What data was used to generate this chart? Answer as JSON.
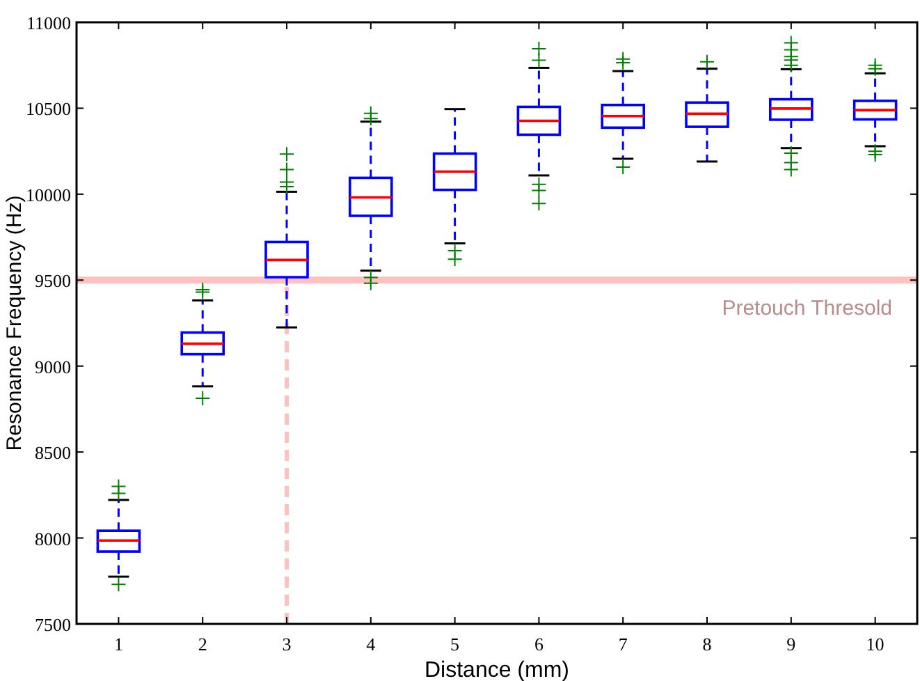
{
  "chart_data": {
    "type": "box",
    "xlabel": "Distance (mm)",
    "ylabel": "Resonance Frequency (Hz)",
    "categories": [
      "1",
      "2",
      "3",
      "4",
      "5",
      "6",
      "7",
      "8",
      "9",
      "10"
    ],
    "ylim": [
      7500,
      11000
    ],
    "yticks": [
      7500,
      8000,
      8500,
      9000,
      9500,
      10000,
      10500,
      11000
    ],
    "grid": false,
    "series": [
      {
        "color": "#0000ff",
        "boxes": [
          {
            "low": 7775,
            "q1": 7921,
            "median": 7985,
            "q3": 8042,
            "high": 8221,
            "outliers": [
              8260,
              8300,
              7730
            ]
          },
          {
            "low": 8882,
            "q1": 9069,
            "median": 9130,
            "q3": 9195,
            "high": 9382,
            "outliers": [
              9430,
              9444,
              8812
            ]
          },
          {
            "low": 9225,
            "q1": 9517,
            "median": 9617,
            "q3": 9722,
            "high": 10014,
            "outliers": [
              10044,
              10070,
              10143,
              10233
            ]
          },
          {
            "low": 9555,
            "q1": 9874,
            "median": 9981,
            "q3": 10095,
            "high": 10422,
            "outliers": [
              10440,
              10470,
              9515,
              9482
            ]
          },
          {
            "low": 9714,
            "q1": 10025,
            "median": 10131,
            "q3": 10236,
            "high": 10495,
            "outliers": [
              9671,
              9622
            ]
          },
          {
            "low": 10109,
            "q1": 10346,
            "median": 10427,
            "q3": 10508,
            "high": 10735,
            "outliers": [
              10779,
              10846,
              10057,
              10022,
              9946
            ]
          },
          {
            "low": 10206,
            "q1": 10387,
            "median": 10454,
            "q3": 10519,
            "high": 10716,
            "outliers": [
              10765,
              10786,
              10157
            ]
          },
          {
            "low": 10190,
            "q1": 10392,
            "median": 10468,
            "q3": 10533,
            "high": 10730,
            "outliers": [
              10770
            ]
          },
          {
            "low": 10268,
            "q1": 10433,
            "median": 10498,
            "q3": 10552,
            "high": 10727,
            "outliers": [
              10750,
              10780,
              10800,
              10840,
              10880,
              10238,
              10184,
              10143
            ]
          },
          {
            "low": 10279,
            "q1": 10435,
            "median": 10489,
            "q3": 10543,
            "high": 10703,
            "outliers": [
              10730,
              10750,
              10250,
              10230
            ]
          }
        ]
      }
    ],
    "ref_lines": [
      {
        "axis": "y",
        "value": 9500,
        "label": "Pretouch Thresold",
        "color": "#ffc0c0",
        "line_style": "solid"
      },
      {
        "axis": "x",
        "value": "3",
        "color": "#ffc0c0",
        "line_style": "dashed"
      }
    ]
  }
}
